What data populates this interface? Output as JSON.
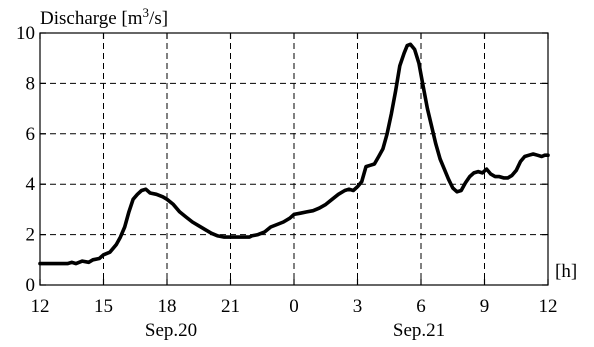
{
  "chart_data": {
    "type": "line",
    "ylabel_prefix": "Discharge [m",
    "ylabel_sup": "3",
    "ylabel_suffix": "/s]",
    "x_unit": "[h]",
    "x_ticks": [
      "12",
      "15",
      "18",
      "21",
      "0",
      "3",
      "6",
      "9",
      "12"
    ],
    "y_ticks": [
      "0",
      "2",
      "4",
      "6",
      "8",
      "10"
    ],
    "date_labels": [
      "Sep.20",
      "Sep.21"
    ],
    "xlim": [
      12,
      36
    ],
    "ylim": [
      0,
      10
    ],
    "grid": true,
    "series": [
      {
        "x": [
          12.0,
          13.0,
          13.3,
          13.5,
          13.7,
          14.0,
          14.3,
          14.5,
          14.8,
          15.0,
          15.3,
          15.6,
          15.8,
          16.0,
          16.2,
          16.4,
          16.6,
          16.8,
          17.0,
          17.2,
          17.5,
          17.8,
          18.0,
          18.3,
          18.6,
          18.9,
          19.2,
          19.5,
          19.8,
          20.1,
          20.4,
          20.7,
          21.0,
          21.3,
          21.6,
          21.9,
          22.0,
          22.3,
          22.6,
          22.9,
          23.2,
          23.5,
          23.8,
          24.0,
          24.3,
          24.6,
          24.9,
          25.2,
          25.5,
          25.8,
          26.1,
          26.4,
          26.6,
          26.8,
          27.0,
          27.2,
          27.4,
          27.6,
          27.8,
          28.0,
          28.2,
          28.4,
          28.6,
          28.8,
          29.0,
          29.2,
          29.35,
          29.5,
          29.7,
          29.9,
          30.1,
          30.3,
          30.5,
          30.7,
          30.9,
          31.1,
          31.3,
          31.5,
          31.7,
          31.9,
          32.1,
          32.3,
          32.5,
          32.7,
          32.9,
          33.1,
          33.3,
          33.5,
          33.7,
          33.9,
          34.1,
          34.3,
          34.5,
          34.7,
          34.9,
          35.1,
          35.3,
          35.5,
          35.7,
          35.85,
          36.0
        ],
        "y": [
          0.85,
          0.85,
          0.85,
          0.9,
          0.85,
          0.95,
          0.9,
          1.0,
          1.05,
          1.2,
          1.3,
          1.6,
          1.9,
          2.3,
          2.9,
          3.4,
          3.6,
          3.75,
          3.8,
          3.65,
          3.6,
          3.5,
          3.4,
          3.2,
          2.9,
          2.7,
          2.5,
          2.35,
          2.2,
          2.05,
          1.95,
          1.9,
          1.9,
          1.9,
          1.9,
          1.9,
          1.95,
          2.0,
          2.1,
          2.3,
          2.4,
          2.5,
          2.65,
          2.8,
          2.85,
          2.9,
          2.95,
          3.05,
          3.2,
          3.4,
          3.6,
          3.75,
          3.8,
          3.75,
          3.9,
          4.1,
          4.7,
          4.75,
          4.8,
          5.1,
          5.4,
          6.0,
          6.8,
          7.7,
          8.7,
          9.2,
          9.5,
          9.55,
          9.35,
          8.8,
          7.9,
          7.0,
          6.3,
          5.6,
          5.0,
          4.6,
          4.2,
          3.85,
          3.7,
          3.75,
          4.05,
          4.3,
          4.45,
          4.5,
          4.45,
          4.6,
          4.4,
          4.3,
          4.3,
          4.25,
          4.25,
          4.35,
          4.55,
          4.9,
          5.1,
          5.15,
          5.2,
          5.15,
          5.1,
          5.15,
          5.15
        ]
      }
    ]
  }
}
